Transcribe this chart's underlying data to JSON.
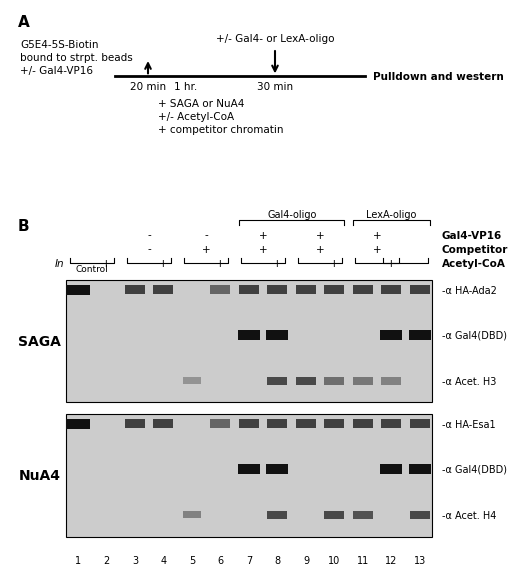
{
  "panel_A": {
    "left_text_lines": [
      "G5E4-5S-Biotin",
      "bound to strpt. beads",
      "+/- Gal4-VP16"
    ],
    "right_text": "Pulldown and western",
    "top_text": "+/- Gal4- or LexA-oligo",
    "below_arrow_lines": [
      "+ SAGA or NuA4",
      "+/- Acetyl-CoA",
      "+ competitor chromatin"
    ]
  },
  "panel_B": {
    "saga_labels": [
      "-α HA-Ada2",
      "-α Gal4(DBD)",
      "-α Acet. H3"
    ],
    "nua4_labels": [
      "-α HA-Esa1",
      "-α Gal4(DBD)",
      "-α Acet. H4"
    ],
    "lane_numbers": [
      "1",
      "2",
      "3",
      "4",
      "5",
      "6",
      "7",
      "8",
      "9",
      "10",
      "11",
      "12",
      "13"
    ],
    "SAGA_label": "SAGA",
    "NuA4_label": "NuA4",
    "Gal4_oligo_label": "Gal4-oligo",
    "LexA_oligo_label": "LexA-oligo",
    "Gal4VP16_label": "Gal4-VP16",
    "Competitor_label": "Competitor",
    "AcetylCoA_label": "Acetyl-CoA"
  },
  "bg_color": "#ffffff",
  "box_bg_saga": "#d0d0d0",
  "box_bg_nua4": "#d0d0d0"
}
